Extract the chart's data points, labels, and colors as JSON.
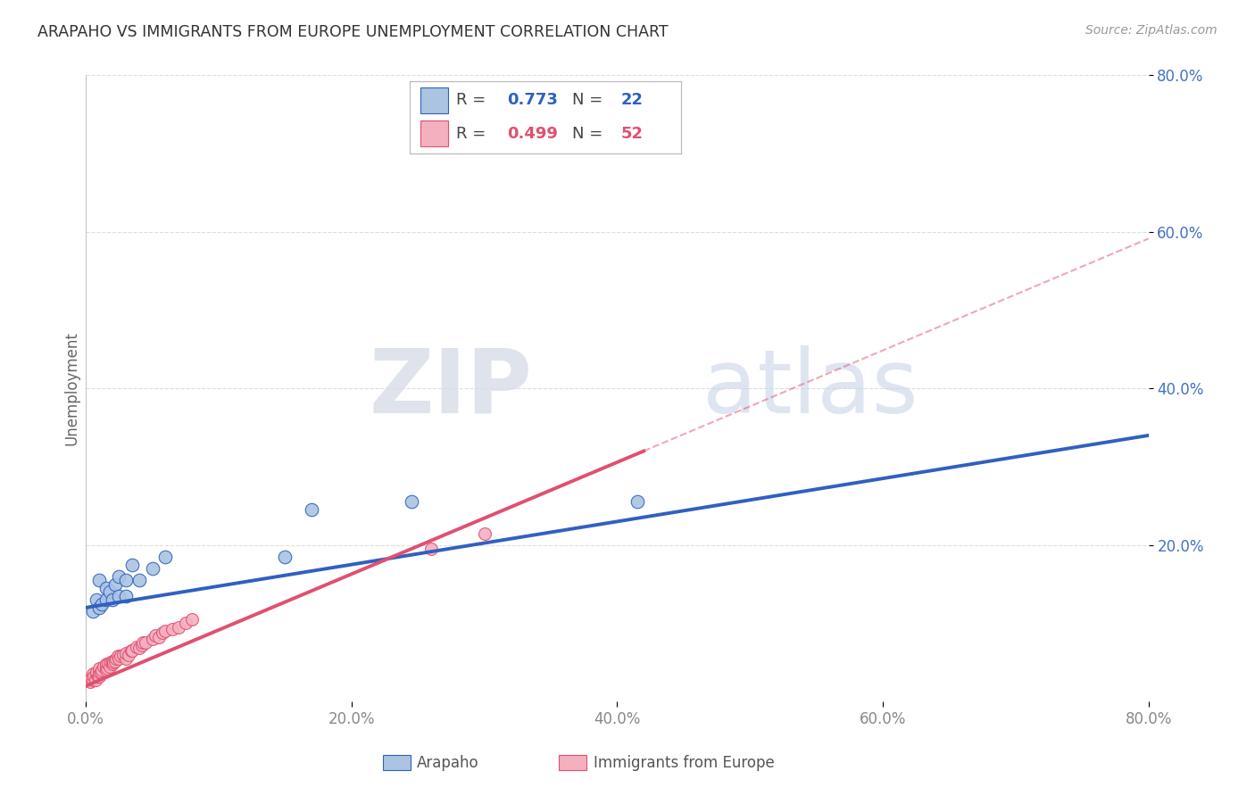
{
  "title": "ARAPAHO VS IMMIGRANTS FROM EUROPE UNEMPLOYMENT CORRELATION CHART",
  "source": "Source: ZipAtlas.com",
  "ylabel": "Unemployment",
  "xlim": [
    0.0,
    0.8
  ],
  "ylim": [
    0.0,
    0.8
  ],
  "xticks": [
    0.0,
    0.2,
    0.4,
    0.6,
    0.8
  ],
  "yticks": [
    0.2,
    0.4,
    0.6,
    0.8
  ],
  "xticklabels": [
    "0.0%",
    "20.0%",
    "40.0%",
    "60.0%",
    "80.0%"
  ],
  "yticklabels": [
    "20.0%",
    "40.0%",
    "60.0%",
    "80.0%"
  ],
  "arapaho_color": "#aac4e2",
  "europe_color": "#f5b0c0",
  "arapaho_line_color": "#3060c0",
  "europe_line_color": "#e05070",
  "legend_arapaho_R": "0.773",
  "legend_arapaho_N": "22",
  "legend_europe_R": "0.499",
  "legend_europe_N": "52",
  "arapaho_x": [
    0.005,
    0.008,
    0.01,
    0.01,
    0.012,
    0.015,
    0.015,
    0.018,
    0.02,
    0.022,
    0.025,
    0.025,
    0.03,
    0.03,
    0.035,
    0.04,
    0.05,
    0.06,
    0.15,
    0.17,
    0.245,
    0.415
  ],
  "arapaho_y": [
    0.115,
    0.13,
    0.12,
    0.155,
    0.125,
    0.13,
    0.145,
    0.14,
    0.13,
    0.15,
    0.135,
    0.16,
    0.135,
    0.155,
    0.175,
    0.155,
    0.17,
    0.185,
    0.185,
    0.245,
    0.255,
    0.255
  ],
  "europe_x": [
    0.003,
    0.004,
    0.005,
    0.005,
    0.006,
    0.007,
    0.008,
    0.008,
    0.009,
    0.01,
    0.01,
    0.01,
    0.011,
    0.012,
    0.013,
    0.015,
    0.015,
    0.015,
    0.016,
    0.017,
    0.018,
    0.019,
    0.02,
    0.02,
    0.021,
    0.022,
    0.023,
    0.024,
    0.025,
    0.026,
    0.028,
    0.03,
    0.03,
    0.032,
    0.034,
    0.035,
    0.038,
    0.04,
    0.042,
    0.043,
    0.045,
    0.05,
    0.052,
    0.055,
    0.058,
    0.06,
    0.065,
    0.07,
    0.075,
    0.08,
    0.26,
    0.3
  ],
  "europe_y": [
    0.025,
    0.03,
    0.028,
    0.035,
    0.032,
    0.028,
    0.035,
    0.038,
    0.032,
    0.032,
    0.038,
    0.042,
    0.038,
    0.04,
    0.045,
    0.04,
    0.045,
    0.048,
    0.042,
    0.048,
    0.045,
    0.05,
    0.048,
    0.052,
    0.05,
    0.052,
    0.055,
    0.058,
    0.055,
    0.058,
    0.06,
    0.055,
    0.062,
    0.06,
    0.065,
    0.065,
    0.07,
    0.068,
    0.072,
    0.075,
    0.075,
    0.08,
    0.085,
    0.082,
    0.088,
    0.09,
    0.092,
    0.095,
    0.1,
    0.105,
    0.195,
    0.215
  ],
  "watermark_zip": "ZIP",
  "watermark_atlas": "atlas",
  "background_color": "#ffffff",
  "grid_color": "#dddddd",
  "title_color": "#333333",
  "source_color": "#999999",
  "tick_color_y": "#4472c4",
  "tick_color_x": "#888888"
}
